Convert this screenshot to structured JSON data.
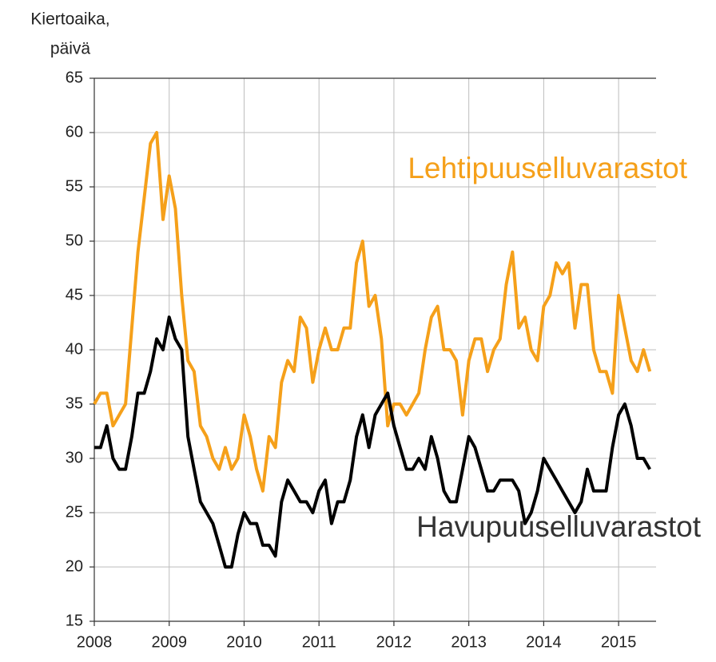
{
  "chart_data": {
    "type": "line",
    "ylabel": [
      "Kiertoaika,",
      "päivä"
    ],
    "x": [
      2008,
      2008.083,
      2008.167,
      2008.25,
      2008.333,
      2008.417,
      2008.5,
      2008.583,
      2008.667,
      2008.75,
      2008.833,
      2008.917,
      2009,
      2009.083,
      2009.167,
      2009.25,
      2009.333,
      2009.417,
      2009.5,
      2009.583,
      2009.667,
      2009.75,
      2009.833,
      2009.917,
      2010,
      2010.083,
      2010.167,
      2010.25,
      2010.333,
      2010.417,
      2010.5,
      2010.583,
      2010.667,
      2010.75,
      2010.833,
      2010.917,
      2011,
      2011.083,
      2011.167,
      2011.25,
      2011.333,
      2011.417,
      2011.5,
      2011.583,
      2011.667,
      2011.75,
      2011.833,
      2011.917,
      2012,
      2012.083,
      2012.167,
      2012.25,
      2012.333,
      2012.417,
      2012.5,
      2012.583,
      2012.667,
      2012.75,
      2012.833,
      2012.917,
      2013,
      2013.083,
      2013.167,
      2013.25,
      2013.333,
      2013.417,
      2013.5,
      2013.583,
      2013.667,
      2013.75,
      2013.833,
      2013.917,
      2014,
      2014.083,
      2014.167,
      2014.25,
      2014.333,
      2014.417,
      2014.5,
      2014.583,
      2014.667,
      2014.75,
      2014.833,
      2014.917,
      2015,
      2015.083,
      2015.167,
      2015.25,
      2015.333,
      2015.417
    ],
    "series": [
      {
        "name": "Lehtipuuselluvarastot",
        "color": "#f5a01a",
        "values": [
          35,
          36,
          36,
          33,
          34,
          35,
          42,
          49,
          54,
          59,
          60,
          52,
          56,
          53,
          45,
          39,
          38,
          33,
          32,
          30,
          29,
          31,
          29,
          30,
          34,
          32,
          29,
          27,
          32,
          31,
          37,
          39,
          38,
          43,
          42,
          37,
          40,
          42,
          40,
          40,
          42,
          42,
          48,
          50,
          44,
          45,
          41,
          33,
          35,
          35,
          34,
          35,
          36,
          40,
          43,
          44,
          40,
          40,
          39,
          34,
          39,
          41,
          41,
          38,
          40,
          41,
          46,
          49,
          42,
          43,
          40,
          39,
          44,
          45,
          48,
          47,
          48,
          42,
          46,
          46,
          40,
          38,
          38,
          36,
          45,
          42,
          39,
          38,
          40,
          38
        ]
      },
      {
        "name": "Havupuuselluvarastot",
        "color": "#000000",
        "values": [
          31,
          31,
          33,
          30,
          29,
          29,
          32,
          36,
          36,
          38,
          41,
          40,
          43,
          41,
          40,
          32,
          29,
          26,
          25,
          24,
          22,
          20,
          20,
          23,
          25,
          24,
          24,
          22,
          22,
          21,
          26,
          28,
          27,
          26,
          26,
          25,
          27,
          28,
          24,
          26,
          26,
          28,
          32,
          34,
          31,
          34,
          35,
          36,
          33,
          31,
          29,
          29,
          30,
          29,
          32,
          30,
          27,
          26,
          26,
          29,
          32,
          31,
          29,
          27,
          27,
          28,
          28,
          28,
          27,
          24,
          25,
          27,
          30,
          29,
          28,
          27,
          26,
          25,
          26,
          29,
          27,
          27,
          27,
          31,
          34,
          35,
          33,
          30,
          30,
          29
        ]
      }
    ],
    "xlim": [
      2008,
      2015.5
    ],
    "xticks": [
      2008,
      2009,
      2010,
      2011,
      2012,
      2013,
      2014,
      2015
    ],
    "ylim": [
      15,
      65
    ],
    "yticks": [
      15,
      20,
      25,
      30,
      35,
      40,
      45,
      50,
      55,
      60,
      65
    ],
    "grid": true
  }
}
